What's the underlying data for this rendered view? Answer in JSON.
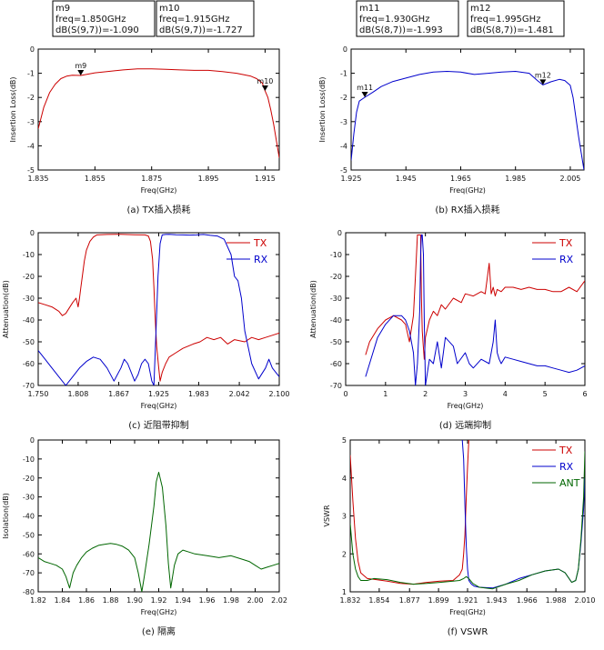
{
  "colors": {
    "tx": "#cc0000",
    "rx": "#0000cc",
    "ant": "#006600",
    "frame": "#000000"
  },
  "chart_data": [
    {
      "id": "a",
      "type": "line",
      "caption": "(a) TX插入损耗",
      "xlabel": "Freq(GHz)",
      "ylabel": "Insertion Loss(dB)",
      "xlim": [
        1.835,
        1.92
      ],
      "ylim": [
        -5,
        0
      ],
      "xticks": [
        1.835,
        1.855,
        1.875,
        1.895,
        1.915
      ],
      "xtick_labels": [
        "1.835",
        "1.855",
        "1.875",
        "1.895",
        "1.915"
      ],
      "yticks": [
        0,
        -1,
        -2,
        -3,
        -4,
        -5
      ],
      "series": [
        {
          "color": "tx",
          "x": [
            1.835,
            1.837,
            1.839,
            1.841,
            1.843,
            1.845,
            1.847,
            1.85,
            1.855,
            1.86,
            1.865,
            1.87,
            1.875,
            1.88,
            1.885,
            1.89,
            1.895,
            1.9,
            1.905,
            1.91,
            1.912,
            1.914,
            1.915,
            1.916,
            1.917,
            1.918,
            1.919,
            1.92
          ],
          "y": [
            -3.3,
            -2.4,
            -1.8,
            -1.45,
            -1.22,
            -1.12,
            -1.08,
            -1.09,
            -0.98,
            -0.92,
            -0.86,
            -0.82,
            -0.82,
            -0.84,
            -0.86,
            -0.88,
            -0.88,
            -0.93,
            -1.0,
            -1.12,
            -1.22,
            -1.4,
            -1.727,
            -2.0,
            -2.5,
            -3.1,
            -3.8,
            -4.5
          ]
        }
      ],
      "markers": [
        {
          "name": "m9",
          "x": 1.85,
          "y": -1.09
        },
        {
          "name": "m10",
          "x": 1.915,
          "y": -1.727
        }
      ]
    },
    {
      "id": "b",
      "type": "line",
      "caption": "(b) RX插入损耗",
      "xlabel": "Freq(GHz)",
      "ylabel": "Insertion Loss(dB)",
      "xlim": [
        1.925,
        2.01
      ],
      "ylim": [
        -5,
        0
      ],
      "xticks": [
        1.925,
        1.945,
        1.965,
        1.985,
        2.005
      ],
      "xtick_labels": [
        "1.925",
        "1.945",
        "1.965",
        "1.985",
        "2.005"
      ],
      "yticks": [
        0,
        -1,
        -2,
        -3,
        -4,
        -5
      ],
      "series": [
        {
          "color": "rx",
          "x": [
            1.925,
            1.926,
            1.927,
            1.928,
            1.93,
            1.933,
            1.936,
            1.94,
            1.945,
            1.95,
            1.955,
            1.96,
            1.965,
            1.97,
            1.975,
            1.98,
            1.985,
            1.99,
            1.993,
            1.995,
            1.998,
            2.001,
            2.003,
            2.005,
            2.006,
            2.007,
            2.008,
            2.009,
            2.01
          ],
          "y": [
            -4.6,
            -3.5,
            -2.6,
            -2.15,
            -1.993,
            -1.78,
            -1.55,
            -1.35,
            -1.2,
            -1.05,
            -0.95,
            -0.92,
            -0.95,
            -1.05,
            -1.0,
            -0.95,
            -0.92,
            -1.0,
            -1.3,
            -1.481,
            -1.35,
            -1.25,
            -1.3,
            -1.5,
            -2.0,
            -2.8,
            -3.6,
            -4.3,
            -5.0
          ]
        }
      ],
      "markers": [
        {
          "name": "m11",
          "x": 1.93,
          "y": -1.993
        },
        {
          "name": "m12",
          "x": 1.995,
          "y": -1.481
        }
      ]
    },
    {
      "id": "c",
      "type": "line",
      "caption": "(c) 近阻带抑制",
      "xlabel": "Freq(GHz)",
      "ylabel": "Attenuation(dB)",
      "xlim": [
        1.75,
        2.1
      ],
      "ylim": [
        -70,
        0
      ],
      "xticks": [
        1.75,
        1.808,
        1.867,
        1.925,
        1.983,
        2.042,
        2.1
      ],
      "xtick_labels": [
        "1.750",
        "1.808",
        "1.867",
        "1.925",
        "1.983",
        "2.042",
        "2.100"
      ],
      "yticks": [
        0,
        -10,
        -20,
        -30,
        -40,
        -50,
        -60,
        -70
      ],
      "legend": [
        "TX",
        "RX"
      ],
      "legend_position": "top-right",
      "series": [
        {
          "name": "TX",
          "color": "tx",
          "x": [
            1.75,
            1.76,
            1.77,
            1.78,
            1.785,
            1.79,
            1.8,
            1.805,
            1.808,
            1.81,
            1.812,
            1.814,
            1.817,
            1.82,
            1.825,
            1.83,
            1.835,
            1.85,
            1.87,
            1.89,
            1.905,
            1.91,
            1.913,
            1.916,
            1.918,
            1.92,
            1.922,
            1.925,
            1.927,
            1.93,
            1.935,
            1.94,
            1.95,
            1.96,
            1.975,
            1.985,
            1.995,
            2.005,
            2.015,
            2.025,
            2.035,
            2.05,
            2.06,
            2.07,
            2.08,
            2.09,
            2.1
          ],
          "y": [
            -32,
            -33,
            -34,
            -36,
            -38,
            -37,
            -32,
            -30,
            -34,
            -30,
            -25,
            -20,
            -13,
            -8,
            -4,
            -2,
            -1,
            -0.8,
            -0.7,
            -0.9,
            -1,
            -1.5,
            -4,
            -12,
            -25,
            -40,
            -52,
            -62,
            -68,
            -64,
            -60,
            -57,
            -55,
            -53,
            -51,
            -50,
            -48,
            -49,
            -48,
            -51,
            -49,
            -50,
            -48,
            -49,
            -48,
            -47,
            -46
          ]
        },
        {
          "name": "RX",
          "color": "rx",
          "x": [
            1.75,
            1.76,
            1.77,
            1.78,
            1.79,
            1.8,
            1.81,
            1.82,
            1.83,
            1.84,
            1.85,
            1.86,
            1.87,
            1.875,
            1.88,
            1.89,
            1.895,
            1.9,
            1.905,
            1.91,
            1.915,
            1.918,
            1.921,
            1.924,
            1.927,
            1.93,
            1.935,
            1.94,
            1.95,
            1.96,
            1.97,
            1.98,
            1.99,
            2.0,
            2.01,
            2.02,
            2.03,
            2.035,
            2.04,
            2.045,
            2.05,
            2.06,
            2.07,
            2.08,
            2.085,
            2.09,
            2.1
          ],
          "y": [
            -54,
            -58,
            -62,
            -66,
            -70,
            -66,
            -62,
            -59,
            -57,
            -58,
            -62,
            -68,
            -62,
            -58,
            -60,
            -68,
            -65,
            -60,
            -58,
            -60,
            -68,
            -70,
            -45,
            -20,
            -5,
            -1,
            -0.8,
            -0.7,
            -0.9,
            -1,
            -1.1,
            -1,
            -0.8,
            -1.2,
            -1.5,
            -3,
            -10,
            -20,
            -22,
            -30,
            -45,
            -60,
            -67,
            -62,
            -58,
            -62,
            -66
          ]
        }
      ]
    },
    {
      "id": "d",
      "type": "line",
      "caption": "(d) 远端抑制",
      "xlabel": "Freq(GHz)",
      "ylabel": "Attenuation(dB)",
      "xlim": [
        0,
        6
      ],
      "ylim": [
        -70,
        0
      ],
      "xticks": [
        0,
        1,
        2,
        3,
        4,
        5,
        6
      ],
      "xtick_labels": [
        "0",
        "1",
        "2",
        "3",
        "4",
        "5",
        "6"
      ],
      "yticks": [
        0,
        -10,
        -20,
        -30,
        -40,
        -50,
        -60,
        -70
      ],
      "legend": [
        "TX",
        "RX"
      ],
      "legend_position": "top-right",
      "series": [
        {
          "name": "TX",
          "color": "tx",
          "x": [
            0.5,
            0.6,
            0.8,
            1.0,
            1.2,
            1.4,
            1.5,
            1.6,
            1.7,
            1.75,
            1.8,
            1.82,
            1.86,
            1.88,
            1.9,
            1.92,
            1.94,
            1.97,
            2.0,
            2.1,
            2.2,
            2.3,
            2.4,
            2.5,
            2.7,
            2.9,
            3.0,
            3.2,
            3.4,
            3.5,
            3.6,
            3.65,
            3.7,
            3.75,
            3.8,
            3.9,
            4.0,
            4.2,
            4.4,
            4.6,
            4.8,
            5.0,
            5.2,
            5.4,
            5.6,
            5.8,
            6.0
          ],
          "y": [
            -56,
            -50,
            -44,
            -40,
            -38,
            -40,
            -42,
            -50,
            -38,
            -20,
            -1,
            -1,
            -1,
            -1,
            -30,
            -45,
            -50,
            -58,
            -48,
            -40,
            -36,
            -38,
            -33,
            -35,
            -30,
            -32,
            -28,
            -29,
            -27,
            -28,
            -14,
            -28,
            -25,
            -29,
            -26,
            -27,
            -25,
            -25,
            -26,
            -25,
            -26,
            -26,
            -27,
            -27,
            -25,
            -27,
            -22
          ]
        },
        {
          "name": "RX",
          "color": "rx",
          "x": [
            0.5,
            0.6,
            0.8,
            1.0,
            1.2,
            1.4,
            1.5,
            1.6,
            1.7,
            1.75,
            1.8,
            1.83,
            1.86,
            1.88,
            1.9,
            1.92,
            1.95,
            1.97,
            2.0,
            2.1,
            2.2,
            2.3,
            2.4,
            2.5,
            2.7,
            2.8,
            3.0,
            3.1,
            3.2,
            3.4,
            3.6,
            3.7,
            3.75,
            3.8,
            3.85,
            3.9,
            4.0,
            4.2,
            4.4,
            4.6,
            4.8,
            5.0,
            5.2,
            5.4,
            5.6,
            5.8,
            6.0
          ],
          "y": [
            -66,
            -60,
            -48,
            -42,
            -38,
            -38,
            -40,
            -45,
            -55,
            -70,
            -60,
            -48,
            -35,
            -10,
            -1,
            -1,
            -10,
            -40,
            -70,
            -58,
            -60,
            -50,
            -62,
            -48,
            -52,
            -60,
            -55,
            -60,
            -62,
            -58,
            -60,
            -50,
            -40,
            -55,
            -58,
            -60,
            -57,
            -58,
            -59,
            -60,
            -61,
            -61,
            -62,
            -63,
            -64,
            -63,
            -61
          ]
        }
      ]
    },
    {
      "id": "e",
      "type": "line",
      "caption": "(e) 隔离",
      "xlabel": "Freq(GHz)",
      "ylabel": "Isolation(dB)",
      "xlim": [
        1.82,
        2.02
      ],
      "ylim": [
        -80,
        0
      ],
      "xticks": [
        1.82,
        1.84,
        1.86,
        1.88,
        1.9,
        1.92,
        1.94,
        1.96,
        1.98,
        2.0,
        2.02
      ],
      "xtick_labels": [
        "1.82",
        "1.84",
        "1.86",
        "1.88",
        "1.90",
        "1.92",
        "1.94",
        "1.96",
        "1.98",
        "2.00",
        "2.02"
      ],
      "yticks": [
        0,
        -10,
        -20,
        -30,
        -40,
        -50,
        -60,
        -70,
        -80
      ],
      "series": [
        {
          "color": "ant",
          "x": [
            1.82,
            1.825,
            1.83,
            1.835,
            1.84,
            1.843,
            1.846,
            1.849,
            1.852,
            1.856,
            1.86,
            1.865,
            1.87,
            1.875,
            1.88,
            1.885,
            1.89,
            1.895,
            1.9,
            1.903,
            1.906,
            1.908,
            1.912,
            1.916,
            1.918,
            1.92,
            1.923,
            1.926,
            1.928,
            1.93,
            1.933,
            1.936,
            1.94,
            1.945,
            1.95,
            1.96,
            1.97,
            1.98,
            1.99,
            1.995,
            2.0,
            2.005,
            2.01,
            2.015,
            2.02
          ],
          "y": [
            -62,
            -64,
            -65,
            -66,
            -68,
            -72,
            -78,
            -70,
            -66,
            -62,
            -59,
            -57,
            -55.5,
            -55,
            -54.5,
            -55,
            -56,
            -58,
            -62,
            -70,
            -80,
            -72,
            -55,
            -35,
            -22,
            -17,
            -25,
            -45,
            -65,
            -78,
            -66,
            -60,
            -58,
            -59,
            -60,
            -61,
            -62,
            -61,
            -63,
            -64,
            -66,
            -68,
            -67,
            -66,
            -65
          ]
        }
      ]
    },
    {
      "id": "f",
      "type": "line",
      "caption": "(f) VSWR",
      "xlabel": "Freq(GHz)",
      "ylabel": "VSWR",
      "xlim": [
        1.832,
        2.01
      ],
      "ylim": [
        1,
        5
      ],
      "xticks": [
        1.832,
        1.854,
        1.877,
        1.899,
        1.921,
        1.943,
        1.966,
        1.988,
        2.01
      ],
      "xtick_labels": [
        "1.832",
        "1.854",
        "1.877",
        "1.899",
        "1.921",
        "1.943",
        "1.966",
        "1.988",
        "2.010"
      ],
      "yticks": [
        5,
        4,
        3,
        2,
        1
      ],
      "legend": [
        "TX",
        "RX",
        "ANT"
      ],
      "legend_position": "top-right",
      "series": [
        {
          "name": "TX",
          "color": "tx",
          "x": [
            1.832,
            1.834,
            1.836,
            1.838,
            1.84,
            1.845,
            1.85,
            1.86,
            1.87,
            1.88,
            1.89,
            1.9,
            1.91,
            1.915,
            1.917,
            1.918,
            1.919,
            1.92,
            1.921,
            1.922
          ],
          "y": [
            4.6,
            3.4,
            2.4,
            1.8,
            1.5,
            1.35,
            1.33,
            1.28,
            1.22,
            1.2,
            1.25,
            1.28,
            1.3,
            1.45,
            1.6,
            2.0,
            2.5,
            3.5,
            4.3,
            5
          ]
        },
        {
          "name": "RX",
          "color": "rx",
          "x": [
            1.917,
            1.918,
            1.919,
            1.92,
            1.921,
            1.922,
            1.924,
            1.926,
            1.93,
            1.94,
            1.95,
            1.96,
            1.97,
            1.98,
            1.99,
            1.995,
            2.0,
            2.003,
            2.005,
            2.007,
            2.009,
            2.01
          ],
          "y": [
            5,
            4.5,
            3.3,
            2.2,
            1.6,
            1.3,
            1.2,
            1.15,
            1.12,
            1.1,
            1.2,
            1.35,
            1.45,
            1.55,
            1.6,
            1.5,
            1.25,
            1.3,
            1.6,
            2.3,
            3.2,
            4.0
          ]
        },
        {
          "name": "ANT",
          "color": "ant",
          "x": [
            1.832,
            1.834,
            1.836,
            1.838,
            1.84,
            1.845,
            1.85,
            1.86,
            1.87,
            1.88,
            1.89,
            1.9,
            1.91,
            1.915,
            1.918,
            1.92,
            1.922,
            1.925,
            1.93,
            1.94,
            1.95,
            1.96,
            1.97,
            1.98,
            1.99,
            1.995,
            2.0,
            2.003,
            2.005,
            2.007,
            2.009,
            2.01
          ],
          "y": [
            2.8,
            2.0,
            1.6,
            1.4,
            1.3,
            1.3,
            1.35,
            1.32,
            1.25,
            1.2,
            1.22,
            1.25,
            1.28,
            1.3,
            1.35,
            1.4,
            1.35,
            1.22,
            1.12,
            1.08,
            1.2,
            1.3,
            1.45,
            1.55,
            1.6,
            1.5,
            1.25,
            1.3,
            1.6,
            2.4,
            3.5,
            4.7
          ]
        }
      ]
    }
  ],
  "marker_boxes": [
    {
      "chart": "a",
      "name": "m9",
      "freq": "freq=1.850GHz",
      "value": "dB(S(9,7))=-1.090"
    },
    {
      "chart": "a",
      "name": "m10",
      "freq": "freq=1.915GHz",
      "value": "dB(S(9,7))=-1.727"
    },
    {
      "chart": "b",
      "name": "m11",
      "freq": "freq=1.930GHz",
      "value": "dB(S(8,7))=-1.993"
    },
    {
      "chart": "b",
      "name": "m12",
      "freq": "freq=1.995GHz",
      "value": "dB(S(8,7))=-1.481"
    }
  ]
}
